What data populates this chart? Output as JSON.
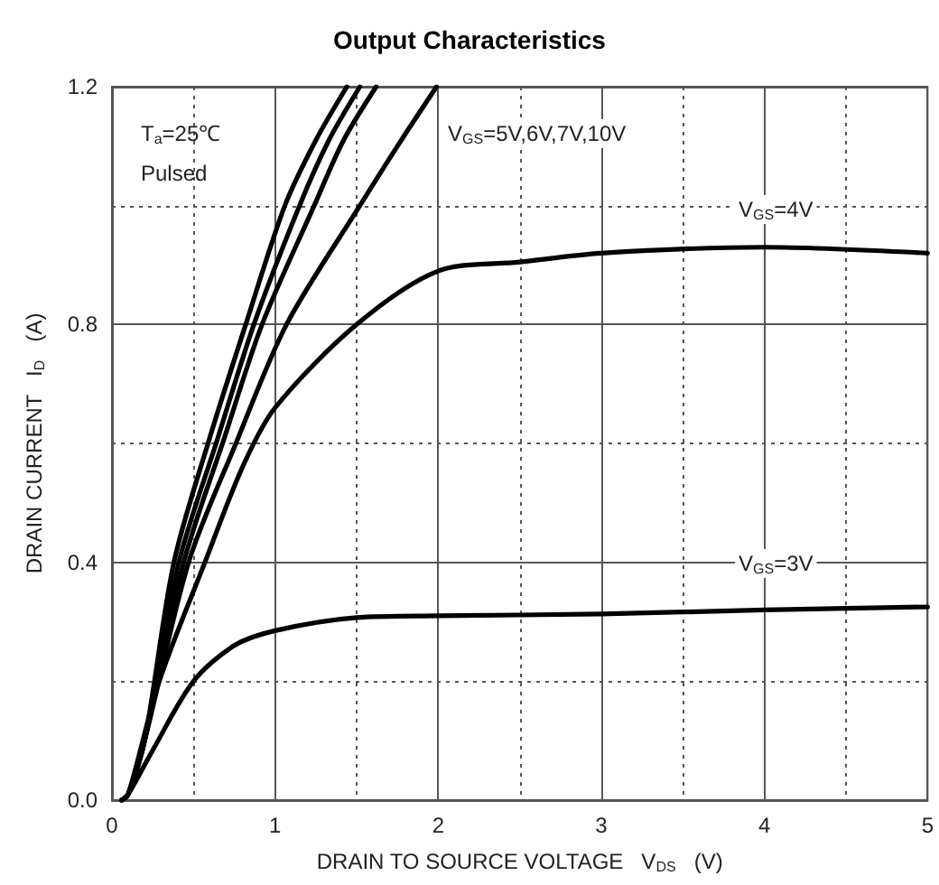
{
  "chart_data": {
    "type": "line",
    "title": "Output Characteristics",
    "xlabel": "DRAIN TO SOURCE VOLTAGE   V$_{DS}$   (V)",
    "ylabel": "DRAIN CURRENT   I$_{D}$   (A)",
    "annotations": [
      "T$_{a}$=25℃",
      "Pulsed",
      "V$_{GS}$=5V,6V,7V,10V",
      "V$_{GS}$=4V",
      "V$_{GS}$=3V"
    ],
    "series": [
      {
        "color": "#000000",
        "x": [
          0.06,
          0.1,
          0.2,
          0.38,
          0.6,
          0.82,
          1.06,
          1.25,
          1.44
        ],
        "values": [
          0,
          0.01,
          0.1,
          0.4,
          0.61,
          0.8,
          1.0,
          1.11,
          1.2
        ]
      },
      {
        "color": "#000000",
        "x": [
          0.06,
          0.1,
          0.2,
          0.41,
          0.65,
          0.87,
          1.15,
          1.33,
          1.52
        ],
        "values": [
          0,
          0.01,
          0.1,
          0.4,
          0.61,
          0.8,
          1.0,
          1.11,
          1.2
        ]
      },
      {
        "color": "#000000",
        "x": [
          0.06,
          0.1,
          0.2,
          0.44,
          0.69,
          0.92,
          1.24,
          1.42,
          1.62
        ],
        "values": [
          0,
          0.01,
          0.1,
          0.4,
          0.61,
          0.8,
          1.0,
          1.11,
          1.2
        ]
      },
      {
        "color": "#000000",
        "x": [
          0.06,
          0.1,
          0.2,
          0.47,
          0.76,
          1.07,
          1.52,
          1.75,
          1.99
        ],
        "values": [
          0,
          0.01,
          0.1,
          0.4,
          0.6,
          0.8,
          1.0,
          1.1,
          1.2
        ]
      },
      {
        "color": "#000000",
        "x": [
          0.06,
          0.1,
          0.29,
          0.57,
          0.8,
          1.0,
          1.5,
          2.0,
          2.5,
          3.0,
          4.0,
          5.0
        ],
        "values": [
          0,
          0.01,
          0.2,
          0.4,
          0.56,
          0.66,
          0.8,
          0.89,
          0.905,
          0.92,
          0.93,
          0.92
        ]
      },
      {
        "color": "#000000",
        "x": [
          0.06,
          0.1,
          0.25,
          0.5,
          0.75,
          1.0,
          1.5,
          2.0,
          3.0,
          4.0,
          5.0
        ],
        "values": [
          0,
          0.01,
          0.084,
          0.2,
          0.26,
          0.285,
          0.307,
          0.31,
          0.313,
          0.32,
          0.325
        ]
      }
    ],
    "xlim": [
      0,
      5
    ],
    "xticks": [
      0,
      {
        "value": 0.5,
        "label": null
      },
      1,
      {
        "value": 1.5,
        "label": null
      },
      2,
      {
        "value": 2.5,
        "label": null
      },
      3,
      {
        "value": 3.5,
        "label": null
      },
      4,
      {
        "value": 4.5,
        "label": null
      },
      5
    ],
    "ylim": [
      0,
      1.2
    ],
    "yticks": [
      {
        "value": 0,
        "label": "0.0"
      },
      {
        "value": 0.2,
        "label": null
      },
      {
        "value": 0.4,
        "label": "0.4"
      },
      {
        "value": 0.6,
        "label": null
      },
      {
        "value": 0.8,
        "label": "0.8"
      },
      {
        "value": 1.0,
        "label": null
      },
      {
        "value": 1.2,
        "label": "1.2"
      }
    ],
    "grid": true,
    "marker": "none",
    "line_style": "solid"
  }
}
